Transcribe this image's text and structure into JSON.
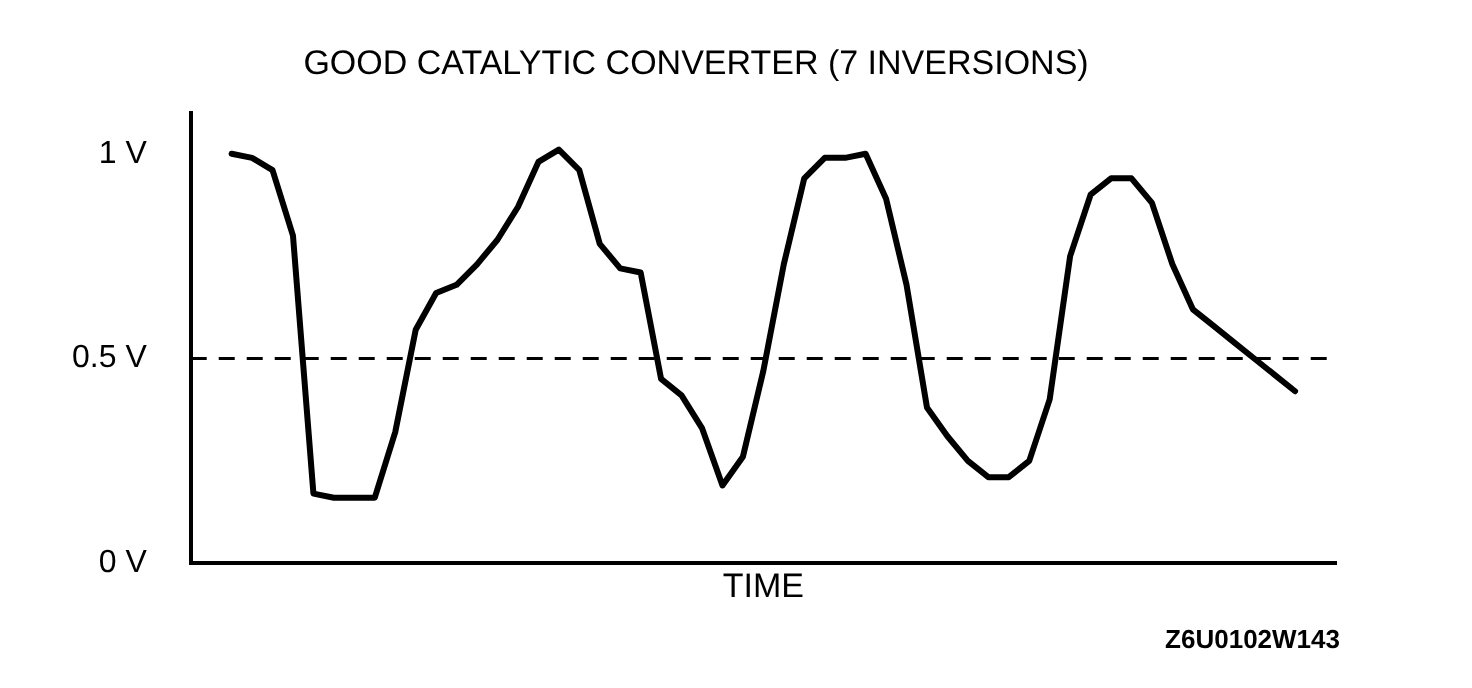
{
  "chart_data": {
    "type": "line",
    "title": "GOOD CATALYTIC CONVERTER (7 INVERSIONS)",
    "xlabel": "TIME",
    "categories": [
      null,
      null,
      null,
      null,
      null,
      null,
      null,
      null,
      null,
      null,
      null,
      null,
      null,
      null,
      null,
      null,
      null,
      null,
      null,
      null,
      null,
      null,
      null,
      null,
      null,
      null,
      null,
      null,
      null,
      null,
      null,
      null,
      null,
      null,
      null,
      null,
      null,
      null,
      null,
      null,
      null,
      null,
      null,
      null,
      null,
      null,
      null,
      null,
      null,
      null,
      null,
      null,
      null,
      null,
      null,
      null,
      null
    ],
    "series": [
      {
        "color": "#000000",
        "values": [
          null,
          null,
          1.0,
          0.99,
          0.96,
          0.8,
          0.17,
          0.16,
          0.16,
          0.16,
          0.32,
          0.57,
          0.66,
          0.68,
          0.73,
          0.79,
          0.87,
          0.98,
          1.01,
          0.96,
          0.78,
          0.72,
          0.71,
          0.45,
          0.41,
          0.33,
          0.19,
          0.26,
          0.47,
          0.73,
          0.94,
          0.99,
          0.99,
          1.0,
          0.89,
          0.68,
          0.38,
          0.31,
          0.25,
          0.21,
          0.21,
          0.25,
          0.4,
          0.75,
          0.9,
          0.94,
          0.94,
          0.88,
          0.73,
          0.62,
          0.58,
          0.54,
          0.5,
          0.46,
          0.42,
          null,
          null
        ]
      }
    ],
    "ylim": [
      0,
      1.1
    ],
    "yticks": [
      {
        "value": 0,
        "label": "0 V"
      },
      {
        "value": 0.5,
        "label": "0.5 V"
      },
      {
        "value": 1,
        "label": "1 V"
      }
    ],
    "ref_lines": [
      {
        "axis": "y",
        "value": 0.5,
        "line_style": "dashed",
        "color": "#000000"
      }
    ],
    "annotations": [
      "Z6U0102W143"
    ],
    "grid": false,
    "legend": false,
    "marker": "none",
    "line_style": "solid",
    "tick_labels": "y"
  }
}
